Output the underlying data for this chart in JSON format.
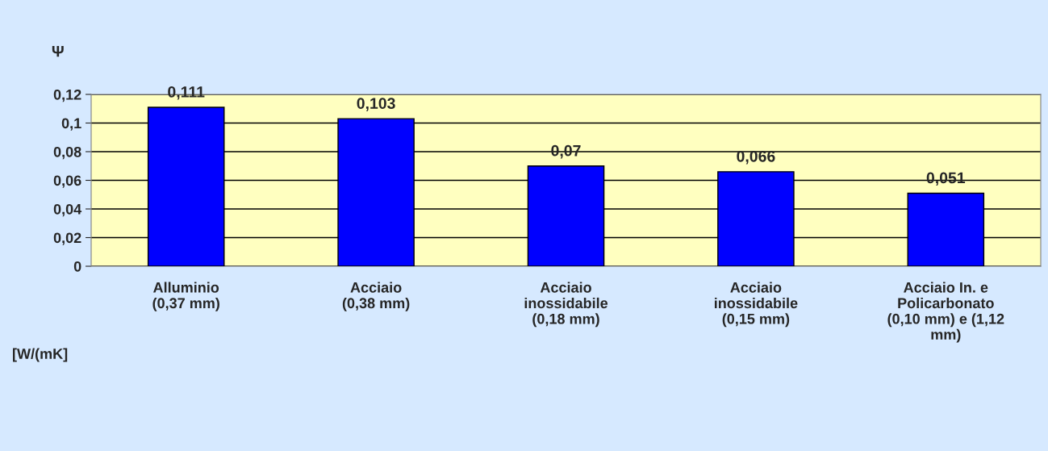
{
  "chart_data": {
    "type": "bar",
    "ylabel": "Ψ",
    "annotations": [
      "[W/(mK]"
    ],
    "categories": [
      "Alluminio\n(0,37 mm)",
      "Acciaio\n(0,38 mm)",
      "Acciaio\ninossidabile\n(0,18 mm)",
      "Acciaio\ninossidabile\n(0,15 mm)",
      "Acciaio In. e\nPolicarbonato\n(0,10 mm) e (1,12\nmm)"
    ],
    "values": [
      0.111,
      0.103,
      0.07,
      0.066,
      0.051
    ],
    "color": "#0000ff",
    "ylim": [
      0,
      0.12
    ],
    "yticks": [
      {
        "value": 0,
        "label": "0"
      },
      {
        "value": 0.02,
        "label": "0,02"
      },
      {
        "value": 0.04,
        "label": "0,04"
      },
      {
        "value": 0.06,
        "label": "0,06"
      },
      {
        "value": 0.08,
        "label": "0,08"
      },
      {
        "value": 0.1,
        "label": "0,1"
      },
      {
        "value": 0.12,
        "label": "0,12"
      }
    ],
    "value_labels": [
      "0,111",
      "0,103",
      "0,07",
      "0,066",
      "0,051"
    ],
    "grid": "y",
    "legend": false
  }
}
